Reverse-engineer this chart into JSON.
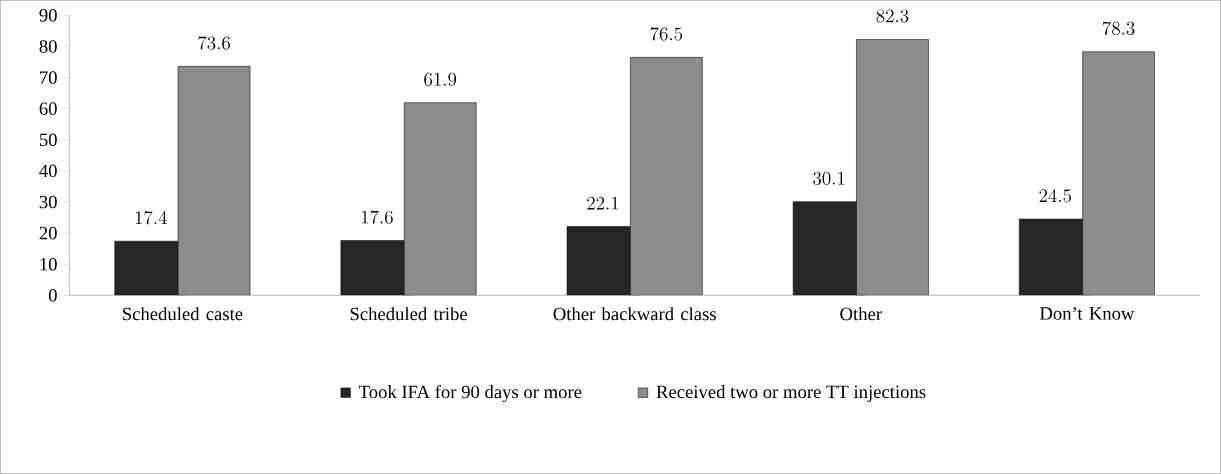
{
  "chart_data": {
    "type": "bar",
    "categories": [
      "Scheduled caste",
      "Scheduled tribe",
      "Other backward class",
      "Other",
      "Don’t Know"
    ],
    "series": [
      {
        "name": "Took IFA for 90 days or more",
        "color": "#262626",
        "values": [
          17.4,
          17.6,
          22.1,
          30.1,
          24.5
        ]
      },
      {
        "name": "Received two or more TT injections",
        "color": "#8c8c8c",
        "values": [
          73.6,
          61.9,
          76.5,
          82.3,
          78.3
        ]
      }
    ],
    "ylim": [
      0,
      90
    ],
    "yticks": [
      0,
      10,
      20,
      30,
      40,
      50,
      60,
      70,
      80,
      90
    ],
    "data_labels": true,
    "legend": "bottom",
    "grid": false
  }
}
